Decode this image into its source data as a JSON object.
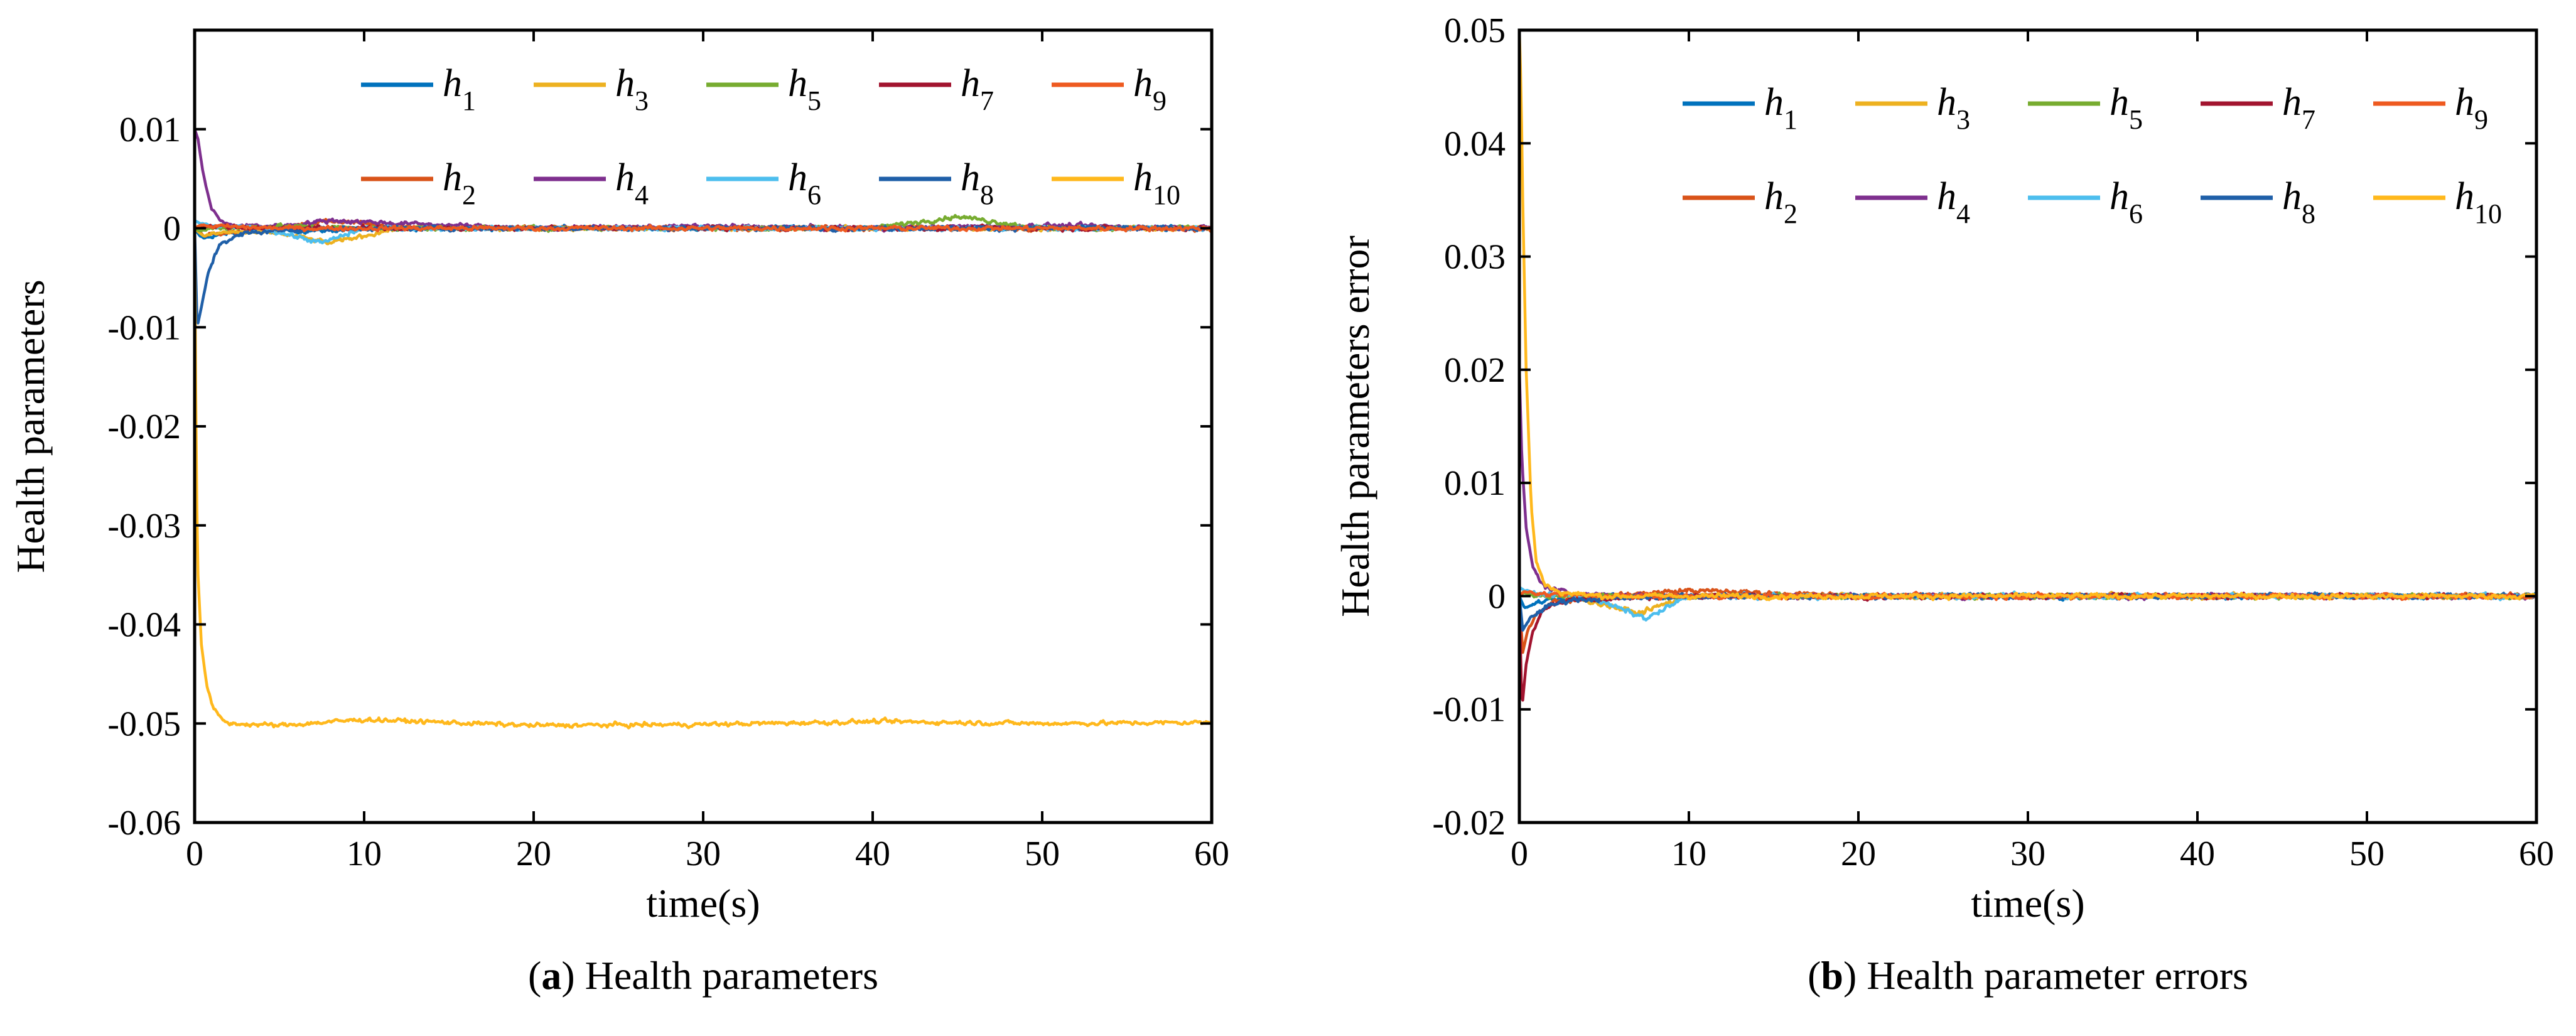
{
  "chart_data": [
    {
      "type": "line",
      "panel_label": "a",
      "caption": "Health parameters",
      "xlabel": "time(s)",
      "ylabel": "Health parameters",
      "xlim": [
        0,
        60
      ],
      "ylim": [
        -0.06,
        0.02
      ],
      "xticks": [
        0,
        10,
        20,
        30,
        40,
        50,
        60
      ],
      "xtick_labels": [
        "0",
        "10",
        "20",
        "30",
        "40",
        "50",
        "60"
      ],
      "yticks": [
        -0.06,
        -0.05,
        -0.04,
        -0.03,
        -0.02,
        -0.01,
        0,
        0.01
      ],
      "ytick_labels": [
        "-0.06",
        "-0.05",
        "-0.04",
        "-0.03",
        "-0.02",
        "-0.01",
        "0",
        "0.01"
      ],
      "legend_position": "top-right",
      "series": [
        {
          "name": "h1",
          "base": "h",
          "sub": "1",
          "color": "#0072BD",
          "x": [
            0,
            0.3,
            0.6,
            1,
            2,
            5,
            8,
            12,
            20,
            30,
            40,
            50,
            60
          ],
          "y": [
            0,
            -0.0008,
            -0.001,
            -0.0008,
            -0.0005,
            -0.0003,
            -0.0002,
            0,
            0,
            0,
            0,
            0,
            0
          ]
        },
        {
          "name": "h2",
          "base": "h",
          "sub": "2",
          "color": "#D95319",
          "x": [
            0,
            0.3,
            0.6,
            1,
            2,
            5,
            8,
            12,
            20,
            30,
            40,
            50,
            60
          ],
          "y": [
            0,
            -0.0005,
            -0.0008,
            -0.0006,
            -0.0004,
            0,
            0.0008,
            0.0002,
            0,
            0,
            0,
            0,
            0
          ]
        },
        {
          "name": "h3",
          "base": "h",
          "sub": "3",
          "color": "#EDB120",
          "x": [
            0,
            0.3,
            0.6,
            1,
            2,
            5,
            8,
            12,
            20,
            30,
            40,
            50,
            60
          ],
          "y": [
            0,
            -0.0005,
            -0.0008,
            -0.0006,
            -0.0004,
            -0.0005,
            -0.0015,
            0,
            0,
            0,
            0,
            0,
            0
          ]
        },
        {
          "name": "h4",
          "base": "h",
          "sub": "4",
          "color": "#7E2F8E",
          "x": [
            0,
            0.2,
            0.5,
            1,
            1.5,
            2,
            5,
            8,
            12,
            20,
            30,
            40,
            50,
            60
          ],
          "y": [
            0.01,
            0.009,
            0.0055,
            0.002,
            0.0008,
            0.0003,
            0.0002,
            0.0008,
            0.0005,
            0,
            0.0002,
            0,
            0.0003,
            0
          ]
        },
        {
          "name": "h5",
          "base": "h",
          "sub": "5",
          "color": "#77AC30",
          "x": [
            0,
            0.3,
            1,
            5,
            10,
            20,
            30,
            40,
            45,
            50,
            60
          ],
          "y": [
            0,
            -0.0003,
            0,
            0.0002,
            0,
            0,
            0,
            0,
            0.0012,
            0,
            0
          ]
        },
        {
          "name": "h6",
          "base": "h",
          "sub": "6",
          "color": "#4DBEEE",
          "x": [
            0,
            0.3,
            1,
            4,
            7.5,
            10,
            20,
            30,
            40,
            50,
            60
          ],
          "y": [
            0.0008,
            0.0005,
            0.0002,
            0,
            -0.0015,
            0,
            0,
            0,
            0,
            0,
            0
          ]
        },
        {
          "name": "h7",
          "base": "h",
          "sub": "7",
          "color": "#A2142F",
          "x": [
            0,
            0.3,
            1,
            5,
            10,
            20,
            30,
            40,
            50,
            60
          ],
          "y": [
            0,
            0.0003,
            0.0002,
            0,
            0,
            0,
            0,
            0,
            0,
            0
          ]
        },
        {
          "name": "h8",
          "base": "h",
          "sub": "8",
          "color": "#1F5FA8",
          "x": [
            0,
            0.15,
            0.4,
            0.8,
            1.5,
            3,
            5,
            10,
            20,
            30,
            40,
            50,
            60
          ],
          "y": [
            0,
            -0.01,
            -0.008,
            -0.0045,
            -0.0015,
            -0.0005,
            -0.0002,
            0,
            0,
            0,
            0,
            0,
            0
          ]
        },
        {
          "name": "h9",
          "base": "h",
          "sub": "9",
          "color": "#EE5A20",
          "x": [
            0,
            0.3,
            1,
            5,
            10,
            20,
            30,
            40,
            50,
            60
          ],
          "y": [
            0,
            0.0003,
            0.0002,
            0,
            0,
            0,
            0,
            0,
            0,
            0
          ]
        },
        {
          "name": "h10",
          "base": "h",
          "sub": "10",
          "color": "#FFB81C",
          "x": [
            0,
            0.1,
            0.2,
            0.4,
            0.7,
            1,
            1.5,
            2,
            5,
            10,
            20,
            30,
            40,
            50,
            60
          ],
          "y": [
            0,
            -0.025,
            -0.035,
            -0.042,
            -0.046,
            -0.048,
            -0.0495,
            -0.05,
            -0.0502,
            -0.0496,
            -0.0502,
            -0.0501,
            -0.0498,
            -0.05,
            -0.0499
          ]
        }
      ]
    },
    {
      "type": "line",
      "panel_label": "b",
      "caption": "Health parameter errors",
      "xlabel": "time(s)",
      "ylabel": "Health parameters error",
      "xlim": [
        0,
        60
      ],
      "ylim": [
        -0.02,
        0.05
      ],
      "xticks": [
        0,
        10,
        20,
        30,
        40,
        50,
        60
      ],
      "xtick_labels": [
        "0",
        "10",
        "20",
        "30",
        "40",
        "50",
        "60"
      ],
      "yticks": [
        -0.02,
        -0.01,
        0,
        0.01,
        0.02,
        0.03,
        0.04,
        0.05
      ],
      "ytick_labels": [
        "-0.02",
        "-0.01",
        "0",
        "0.01",
        "0.02",
        "0.03",
        "0.04",
        "0.05"
      ],
      "legend_position": "top-right",
      "series": [
        {
          "name": "h1",
          "base": "h",
          "sub": "1",
          "color": "#0072BD",
          "x": [
            0,
            0.3,
            1,
            2,
            5,
            10,
            20,
            30,
            40,
            50,
            60
          ],
          "y": [
            0,
            -0.001,
            -0.0006,
            -0.0003,
            0,
            0,
            0,
            0,
            0,
            0,
            0
          ]
        },
        {
          "name": "h2",
          "base": "h",
          "sub": "2",
          "color": "#D95319",
          "x": [
            0,
            0.2,
            0.5,
            1,
            2,
            5,
            10,
            20,
            30,
            40,
            50,
            60
          ],
          "y": [
            0,
            -0.005,
            -0.003,
            -0.0015,
            -0.0005,
            0,
            0.0005,
            0,
            0,
            0,
            0,
            0
          ]
        },
        {
          "name": "h3",
          "base": "h",
          "sub": "3",
          "color": "#EDB120",
          "x": [
            0,
            0.3,
            1,
            3,
            7,
            10,
            20,
            30,
            40,
            50,
            60
          ],
          "y": [
            0,
            0.0005,
            0.0002,
            0,
            -0.0015,
            0,
            0,
            0,
            0,
            0,
            0
          ]
        },
        {
          "name": "h4",
          "base": "h",
          "sub": "4",
          "color": "#7E2F8E",
          "x": [
            0,
            0.15,
            0.4,
            0.8,
            1.5,
            3,
            10,
            20,
            30,
            40,
            50,
            60
          ],
          "y": [
            0.02,
            0.012,
            0.006,
            0.0025,
            0.0008,
            0.0002,
            0,
            0,
            0,
            0,
            0,
            0
          ]
        },
        {
          "name": "h5",
          "base": "h",
          "sub": "5",
          "color": "#77AC30",
          "x": [
            0,
            0.3,
            1,
            5,
            10,
            20,
            30,
            40,
            50,
            60
          ],
          "y": [
            0,
            0.0003,
            0,
            0,
            0,
            0,
            0,
            0,
            0,
            0
          ]
        },
        {
          "name": "h6",
          "base": "h",
          "sub": "6",
          "color": "#4DBEEE",
          "x": [
            0,
            0.3,
            1,
            4,
            7.5,
            10,
            20,
            30,
            40,
            50,
            60
          ],
          "y": [
            0.0008,
            0.0005,
            0.0002,
            0,
            -0.002,
            0,
            0,
            0,
            0,
            0,
            0
          ]
        },
        {
          "name": "h7",
          "base": "h",
          "sub": "7",
          "color": "#A2142F",
          "x": [
            0,
            0.15,
            0.4,
            0.8,
            1.5,
            3,
            10,
            20,
            30,
            40,
            50,
            60
          ],
          "y": [
            0,
            -0.01,
            -0.006,
            -0.003,
            -0.001,
            -0.0003,
            0,
            0,
            0,
            0,
            0,
            0
          ]
        },
        {
          "name": "h8",
          "base": "h",
          "sub": "8",
          "color": "#1F5FA8",
          "x": [
            0,
            0.2,
            0.6,
            1.5,
            3,
            10,
            20,
            30,
            40,
            50,
            60
          ],
          "y": [
            0,
            -0.003,
            -0.002,
            -0.001,
            -0.0003,
            0,
            0,
            0,
            0,
            0,
            0
          ]
        },
        {
          "name": "h9",
          "base": "h",
          "sub": "9",
          "color": "#EE5A20",
          "x": [
            0,
            0.3,
            1,
            5,
            10,
            20,
            30,
            40,
            50,
            60
          ],
          "y": [
            0,
            0.0004,
            0.0002,
            0,
            0,
            0,
            0,
            0,
            0,
            0
          ]
        },
        {
          "name": "h10",
          "base": "h",
          "sub": "10",
          "color": "#FFB81C",
          "x": [
            0,
            0.1,
            0.2,
            0.4,
            0.7,
            1,
            1.5,
            2.5,
            5,
            10,
            20,
            30,
            40,
            50,
            60
          ],
          "y": [
            0.05,
            0.045,
            0.035,
            0.02,
            0.008,
            0.003,
            0.001,
            0.0003,
            0,
            0,
            0,
            0,
            0,
            0,
            0
          ]
        }
      ]
    }
  ]
}
